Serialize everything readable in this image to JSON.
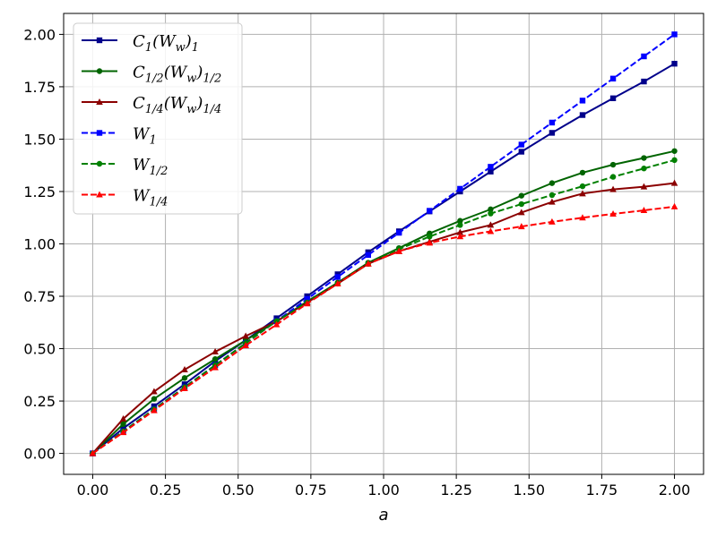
{
  "chart_data": {
    "type": "line",
    "xlabel": "a",
    "ylabel": "",
    "xlim": [
      -0.1,
      2.1
    ],
    "ylim": [
      -0.1,
      2.1
    ],
    "xticks": [
      0.0,
      0.25,
      0.5,
      0.75,
      1.0,
      1.25,
      1.5,
      1.75,
      2.0
    ],
    "yticks": [
      0.0,
      0.25,
      0.5,
      0.75,
      1.0,
      1.25,
      1.5,
      1.75,
      2.0
    ],
    "xtick_labels": [
      "0.00",
      "0.25",
      "0.50",
      "0.75",
      "1.00",
      "1.25",
      "1.50",
      "1.75",
      "2.00"
    ],
    "ytick_labels": [
      "0.00",
      "0.25",
      "0.50",
      "0.75",
      "1.00",
      "1.25",
      "1.50",
      "1.75",
      "2.00"
    ],
    "grid": true,
    "legend_position": "top-left",
    "x": [
      0.0,
      0.105,
      0.211,
      0.316,
      0.421,
      0.526,
      0.632,
      0.737,
      0.842,
      0.947,
      1.053,
      1.158,
      1.263,
      1.368,
      1.474,
      1.579,
      1.684,
      1.789,
      1.895,
      2.0
    ],
    "series": [
      {
        "legend_main": "C",
        "legend_sub1": "1",
        "legend_mid": "(W",
        "legend_sub2": "w",
        "legend_end": ")",
        "legend_sub3": "1",
        "color": "#00008b",
        "dashed": false,
        "marker": "square",
        "values": [
          0.0,
          0.12,
          0.225,
          0.33,
          0.44,
          0.54,
          0.645,
          0.75,
          0.855,
          0.96,
          1.06,
          1.155,
          1.25,
          1.345,
          1.44,
          1.53,
          1.615,
          1.695,
          1.775,
          1.86
        ]
      },
      {
        "legend_main": "C",
        "legend_sub1": "1/2",
        "legend_mid": "(W",
        "legend_sub2": "w",
        "legend_end": ")",
        "legend_sub3": "1/2",
        "color": "#006400",
        "dashed": false,
        "marker": "circle",
        "values": [
          0.0,
          0.14,
          0.26,
          0.36,
          0.45,
          0.54,
          0.63,
          0.725,
          0.815,
          0.91,
          0.98,
          1.05,
          1.11,
          1.165,
          1.23,
          1.29,
          1.34,
          1.378,
          1.41,
          1.443
        ]
      },
      {
        "legend_main": "C",
        "legend_sub1": "1/4",
        "legend_mid": "(W",
        "legend_sub2": "w",
        "legend_end": ")",
        "legend_sub3": "1/4",
        "color": "#8b0000",
        "dashed": false,
        "marker": "triangle",
        "values": [
          0.0,
          0.165,
          0.295,
          0.4,
          0.485,
          0.56,
          0.63,
          0.72,
          0.81,
          0.905,
          0.965,
          1.01,
          1.055,
          1.09,
          1.15,
          1.2,
          1.24,
          1.26,
          1.273,
          1.29
        ]
      },
      {
        "legend_main": "W",
        "legend_sub1": "1",
        "legend_mid": "",
        "legend_sub2": "",
        "legend_end": "",
        "legend_sub3": "",
        "color": "#0000ff",
        "dashed": true,
        "marker": "square",
        "values": [
          0.0,
          0.105,
          0.211,
          0.316,
          0.421,
          0.526,
          0.632,
          0.737,
          0.842,
          0.947,
          1.053,
          1.158,
          1.263,
          1.368,
          1.474,
          1.579,
          1.684,
          1.789,
          1.895,
          2.0
        ]
      },
      {
        "legend_main": "W",
        "legend_sub1": "1/2",
        "legend_mid": "",
        "legend_sub2": "",
        "legend_end": "",
        "legend_sub3": "",
        "color": "#008000",
        "dashed": true,
        "marker": "circle",
        "values": [
          0.0,
          0.105,
          0.211,
          0.316,
          0.421,
          0.526,
          0.632,
          0.72,
          0.81,
          0.905,
          0.975,
          1.035,
          1.09,
          1.145,
          1.19,
          1.233,
          1.275,
          1.32,
          1.36,
          1.4
        ]
      },
      {
        "legend_main": "W",
        "legend_sub1": "1/4",
        "legend_mid": "",
        "legend_sub2": "",
        "legend_end": "",
        "legend_sub3": "",
        "color": "#ff0000",
        "dashed": true,
        "marker": "triangle",
        "values": [
          0.0,
          0.1,
          0.205,
          0.31,
          0.41,
          0.515,
          0.615,
          0.715,
          0.81,
          0.905,
          0.965,
          1.005,
          1.035,
          1.06,
          1.083,
          1.105,
          1.125,
          1.143,
          1.16,
          1.178
        ]
      }
    ]
  }
}
